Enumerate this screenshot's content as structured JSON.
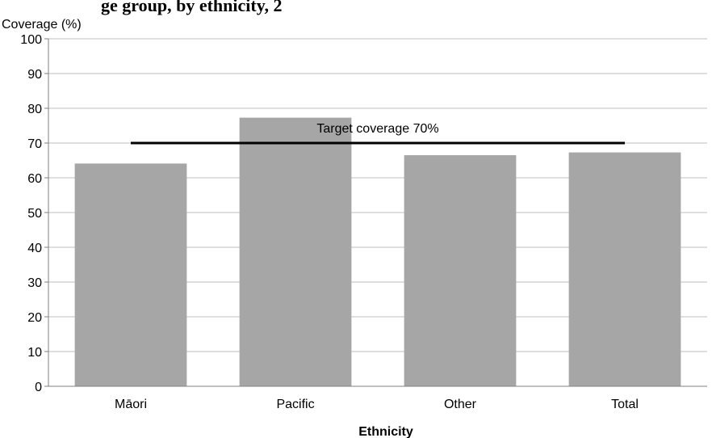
{
  "header_fragment": "ge group, by ethnicity, 2",
  "chart_data": {
    "type": "bar",
    "categories": [
      "Māori",
      "Pacific",
      "Other",
      "Total"
    ],
    "values": [
      64.1,
      77.3,
      66.5,
      67.3
    ],
    "ylabel": "Coverage (%)",
    "xlabel": "Ethnicity",
    "ylim": [
      0,
      100
    ],
    "yticks": [
      0,
      10,
      20,
      30,
      40,
      50,
      60,
      70,
      80,
      90,
      100
    ],
    "grid": true,
    "target": {
      "value": 70,
      "label": "Target coverage 70%"
    },
    "colors": {
      "bar": "#a6a6a6",
      "target_line": "#000000",
      "grid": "#bfbfbf",
      "axis": "#808080"
    }
  }
}
